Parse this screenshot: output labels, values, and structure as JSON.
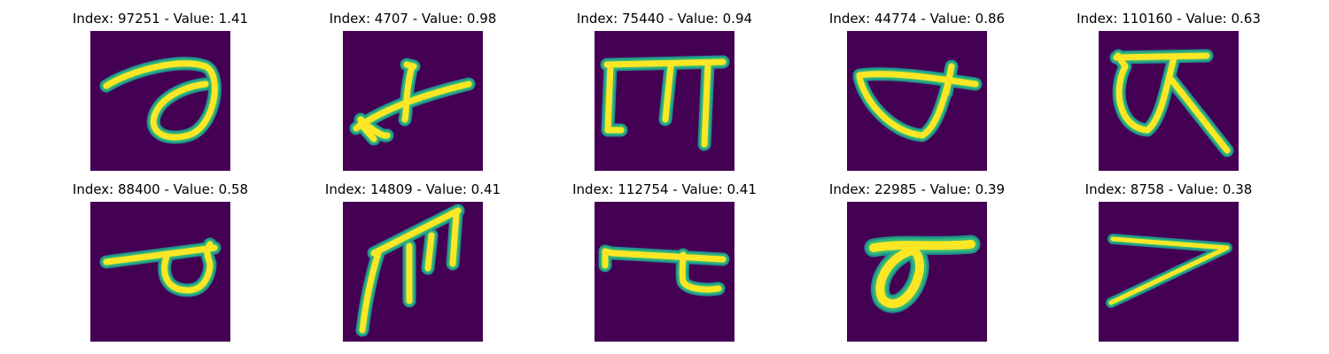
{
  "figure": {
    "background_color": "#440154",
    "stroke_colors": {
      "core": "#fde725",
      "mid": "#b5de2b",
      "edge": "#35b779",
      "halo": "#21918c"
    },
    "panels": [
      {
        "index": "97251",
        "value": "1.41",
        "title": "Index: 97251 - Value: 1.41"
      },
      {
        "index": "4707",
        "value": "0.98",
        "title": "Index: 4707 - Value: 0.98"
      },
      {
        "index": "75440",
        "value": "0.94",
        "title": "Index: 75440 - Value: 0.94"
      },
      {
        "index": "44774",
        "value": "0.86",
        "title": "Index: 44774 - Value: 0.86"
      },
      {
        "index": "110160",
        "value": "0.63",
        "title": "Index: 110160 - Value: 0.63"
      },
      {
        "index": "88400",
        "value": "0.58",
        "title": "Index: 88400 - Value: 0.58"
      },
      {
        "index": "14809",
        "value": "0.41",
        "title": "Index: 14809 - Value: 0.41"
      },
      {
        "index": "112754",
        "value": "0.41",
        "title": "Index: 112754 - Value: 0.41"
      },
      {
        "index": "22985",
        "value": "0.39",
        "title": "Index: 22985 - Value: 0.39"
      },
      {
        "index": "8758",
        "value": "0.38",
        "title": "Index: 8758 - Value: 0.38"
      }
    ]
  }
}
